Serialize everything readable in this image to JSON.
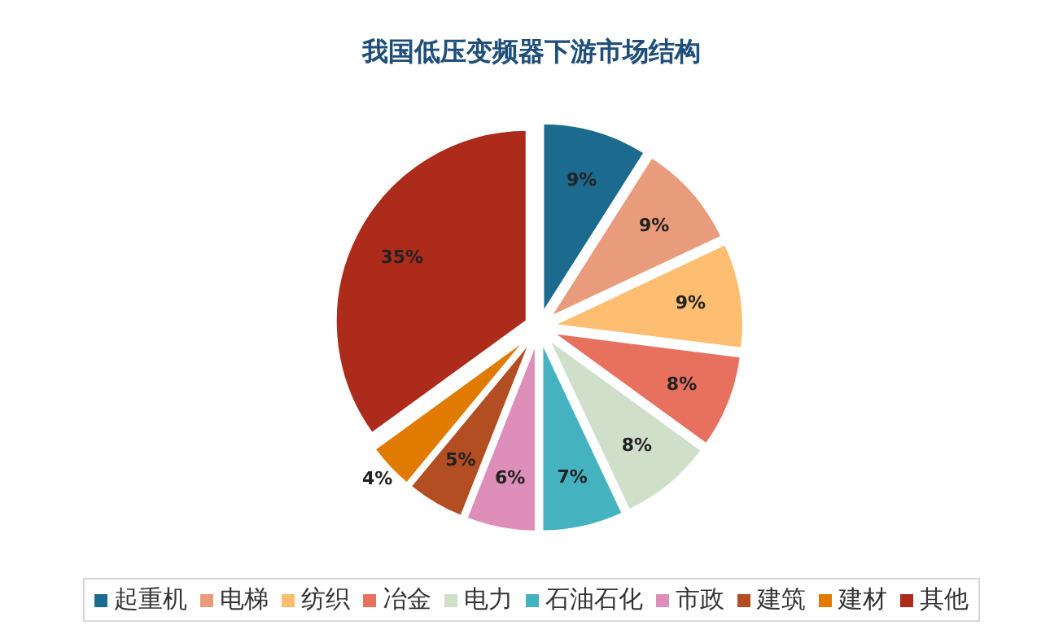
{
  "chart_data": {
    "type": "pie",
    "title": "我国低压变频器下游市场结构",
    "categories": [
      "起重机",
      "电梯",
      "纺织",
      "冶金",
      "电力",
      "石油石化",
      "市政",
      "建筑",
      "建材",
      "其他"
    ],
    "values": [
      9,
      9,
      9,
      8,
      8,
      7,
      6,
      5,
      4,
      35
    ],
    "value_labels": [
      "9%",
      "9%",
      "9%",
      "8%",
      "8%",
      "7%",
      "6%",
      "5%",
      "4%",
      "35%"
    ],
    "colors": [
      "#1c6b8e",
      "#e89c7c",
      "#fdbe72",
      "#e8705f",
      "#d0dfca",
      "#45b2c0",
      "#de8fb9",
      "#b34d22",
      "#e07a00",
      "#ac2b1a"
    ],
    "legend": "bottom"
  }
}
